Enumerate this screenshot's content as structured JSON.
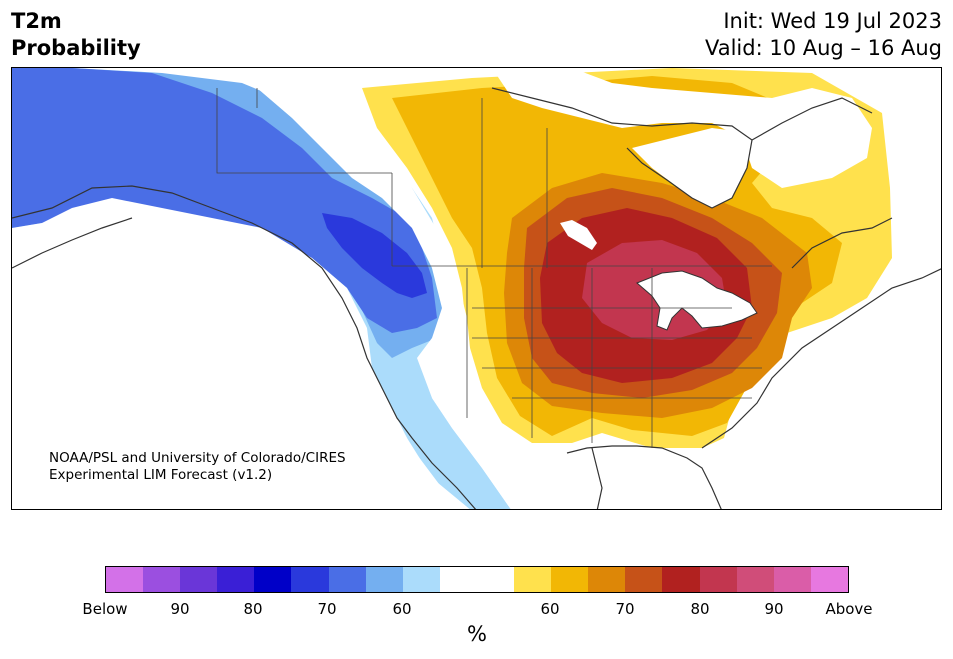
{
  "title": {
    "variable": "T2m",
    "quantity": "Probability",
    "init": "Init: Wed 19 Jul 2023",
    "valid": "Valid: 10 Aug – 16 Aug"
  },
  "credit": {
    "line1": "NOAA/PSL and University of Colorado/CIRES",
    "line2": "Experimental LIM Forecast (v1.2)"
  },
  "colorbar": {
    "colors": [
      "#d371e8",
      "#9b4fe0",
      "#6a36d8",
      "#3a1fd6",
      "#0000c8",
      "#2a39dc",
      "#4a6ee6",
      "#74aff0",
      "#abdcfb",
      "#ffffff",
      "#ffffff",
      "#ffe14d",
      "#f2b705",
      "#dd8707",
      "#c65218",
      "#b1211f",
      "#c2364f",
      "#d04d79",
      "#da5da8",
      "#e778e0"
    ],
    "ticks": [
      "Below",
      "90",
      "80",
      "70",
      "60",
      "60",
      "70",
      "80",
      "90",
      "Above"
    ],
    "unit": "%"
  },
  "map": {
    "region": "North America",
    "fill_colors": {
      "deep_blue": "#2a39dc",
      "blue": "#4a6ee6",
      "mid_blue": "#74aff0",
      "light_blue": "#abdcfb",
      "yellow": "#ffe14d",
      "gold": "#f2b705",
      "orange": "#dd8707",
      "burnt": "#c65218",
      "red": "#b1211f",
      "rose": "#c2364f",
      "coastline": "#333333"
    }
  }
}
